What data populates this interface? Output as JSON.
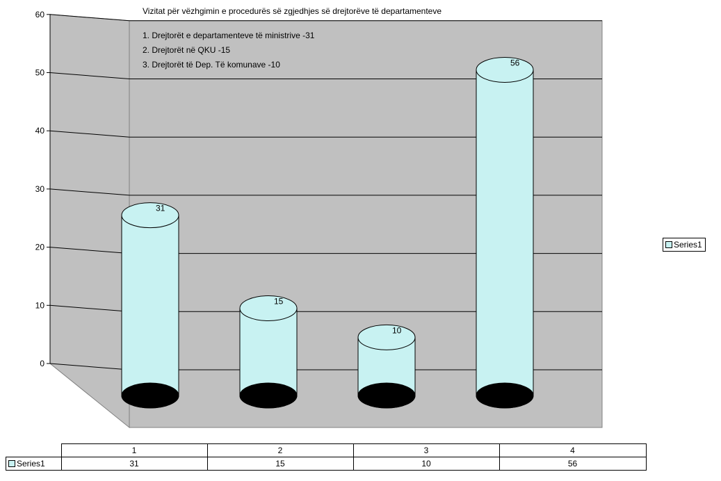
{
  "chart_data": {
    "type": "bar",
    "title": "Vizitat për vëzhgimin e procedurës së zgjedhjes së drejtorëve të departamenteve",
    "notes": [
      "1. Drejtorët e departamenteve të ministrive -31",
      "2. Drejtorët në QKU -15",
      "3. Drejtorët të Dep. Të komunave -10"
    ],
    "categories": [
      "1",
      "2",
      "3",
      "4"
    ],
    "series": [
      {
        "name": "Series1",
        "values": [
          31,
          15,
          10,
          56
        ],
        "color": "#c8f2f2"
      }
    ],
    "data_labels": [
      "31",
      "15",
      "10",
      "56"
    ],
    "ylim": [
      0,
      60
    ],
    "yticks": [
      "0",
      "10",
      "20",
      "30",
      "40",
      "50",
      "60"
    ],
    "xlabel": "",
    "ylabel": "",
    "grid": true,
    "legend": "right",
    "data_table": true,
    "colors": {
      "walls": "#c0c0c0",
      "floor": "#c0c0c0",
      "bar_top": "#000000"
    }
  }
}
